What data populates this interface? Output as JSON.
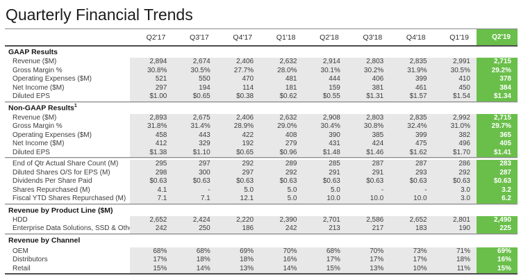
{
  "title": "Quarterly Financial Trends",
  "table": {
    "columns": [
      "Q2'17",
      "Q3'17",
      "Q4'17",
      "Q1'18",
      "Q2'18",
      "Q3'18",
      "Q4'18",
      "Q1'19",
      "Q2'19"
    ],
    "highlighted_column": "Q2'19",
    "sections": [
      {
        "title": "GAAP Results",
        "rows": [
          {
            "label": "Revenue ($M)",
            "values": [
              "2,894",
              "2,674",
              "2,406",
              "2,632",
              "2,914",
              "2,803",
              "2,835",
              "2,991",
              "2,715"
            ]
          },
          {
            "label": "Gross Margin %",
            "values": [
              "30.8%",
              "30.5%",
              "27.7%",
              "28.0%",
              "30.1%",
              "30.2%",
              "31.9%",
              "30.5%",
              "29.2%"
            ]
          },
          {
            "label": "Operating Expenses ($M)",
            "values": [
              "521",
              "550",
              "470",
              "481",
              "444",
              "406",
              "399",
              "410",
              "378"
            ]
          },
          {
            "label": "Net Income ($M)",
            "values": [
              "297",
              "194",
              "114",
              "181",
              "159",
              "381",
              "461",
              "450",
              "384"
            ]
          },
          {
            "label": "Diluted EPS",
            "values": [
              "$1.00",
              "$0.65",
              "$0.38",
              "$0.62",
              "$0.55",
              "$1.31",
              "$1.57",
              "$1.54",
              "$1.34"
            ]
          }
        ]
      },
      {
        "title": "Non-GAAP Results",
        "title_superscript": "1",
        "rows": [
          {
            "label": "Revenue ($M)",
            "values": [
              "2,893",
              "2,675",
              "2,406",
              "2,632",
              "2,908",
              "2,803",
              "2,835",
              "2,992",
              "2,715"
            ]
          },
          {
            "label": "Gross Margin %",
            "values": [
              "31.8%",
              "31.4%",
              "28.9%",
              "29.0%",
              "30.4%",
              "30.8%",
              "32.4%",
              "31.0%",
              "29.7%"
            ]
          },
          {
            "label": "Operating Expenses ($M)",
            "values": [
              "458",
              "443",
              "422",
              "408",
              "390",
              "385",
              "399",
              "382",
              "365"
            ]
          },
          {
            "label": "Net Income ($M)",
            "values": [
              "412",
              "329",
              "192",
              "279",
              "431",
              "424",
              "475",
              "496",
              "405"
            ]
          },
          {
            "label": "Diluted EPS",
            "values": [
              "$1.38",
              "$1.10",
              "$0.65",
              "$0.96",
              "$1.48",
              "$1.46",
              "$1.62",
              "$1.70",
              "$1.41"
            ]
          }
        ]
      },
      {
        "title": null,
        "rows": [
          {
            "label": "End of Qtr Actual Share Count (M)",
            "values": [
              "295",
              "297",
              "292",
              "289",
              "285",
              "287",
              "287",
              "286",
              "283"
            ]
          },
          {
            "label": "Diluted Shares O/S for EPS (M)",
            "values": [
              "298",
              "300",
              "297",
              "292",
              "291",
              "291",
              "293",
              "292",
              "287"
            ]
          },
          {
            "label": "Dividends Per Share Paid",
            "values": [
              "$0.63",
              "$0.63",
              "$0.63",
              "$0.63",
              "$0.63",
              "$0.63",
              "$0.63",
              "$0.63",
              "$0.63"
            ]
          },
          {
            "label": "Shares Repurchased (M)",
            "values": [
              "4.1",
              "-",
              "5.0",
              "5.0",
              "5.0",
              "-",
              "-",
              "3.0",
              "3.2"
            ]
          },
          {
            "label": "Fiscal YTD Shares Repurchased (M)",
            "values": [
              "7.1",
              "7.1",
              "12.1",
              "5.0",
              "10.0",
              "10.0",
              "10.0",
              "3.0",
              "6.2"
            ]
          }
        ]
      },
      {
        "title": "Revenue by Product Line ($M)",
        "rows": [
          {
            "label": "HDD",
            "values": [
              "2,652",
              "2,424",
              "2,220",
              "2,390",
              "2,701",
              "2,586",
              "2,652",
              "2,801",
              "2,490"
            ]
          },
          {
            "label": "Enterprise Data Solutions, SSD & Other",
            "values": [
              "242",
              "250",
              "186",
              "242",
              "213",
              "217",
              "183",
              "190",
              "225"
            ]
          }
        ]
      },
      {
        "title": "Revenue by Channel",
        "rows": [
          {
            "label": "OEM",
            "values": [
              "68%",
              "68%",
              "69%",
              "70%",
              "68%",
              "70%",
              "73%",
              "71%",
              "69%"
            ]
          },
          {
            "label": "Distributors",
            "values": [
              "17%",
              "18%",
              "18%",
              "16%",
              "17%",
              "17%",
              "17%",
              "18%",
              "16%"
            ]
          },
          {
            "label": "Retail",
            "values": [
              "15%",
              "14%",
              "13%",
              "14%",
              "15%",
              "13%",
              "10%",
              "11%",
              "15%"
            ]
          }
        ]
      }
    ]
  },
  "colors": {
    "highlight_green": "#6abf4b",
    "row_shade": "#e8e8e8",
    "rule_dark": "#4d4d4d",
    "rule_gray": "#8a8a8a",
    "rule_light": "#dcdcdc",
    "text": "#3c3c3c"
  }
}
